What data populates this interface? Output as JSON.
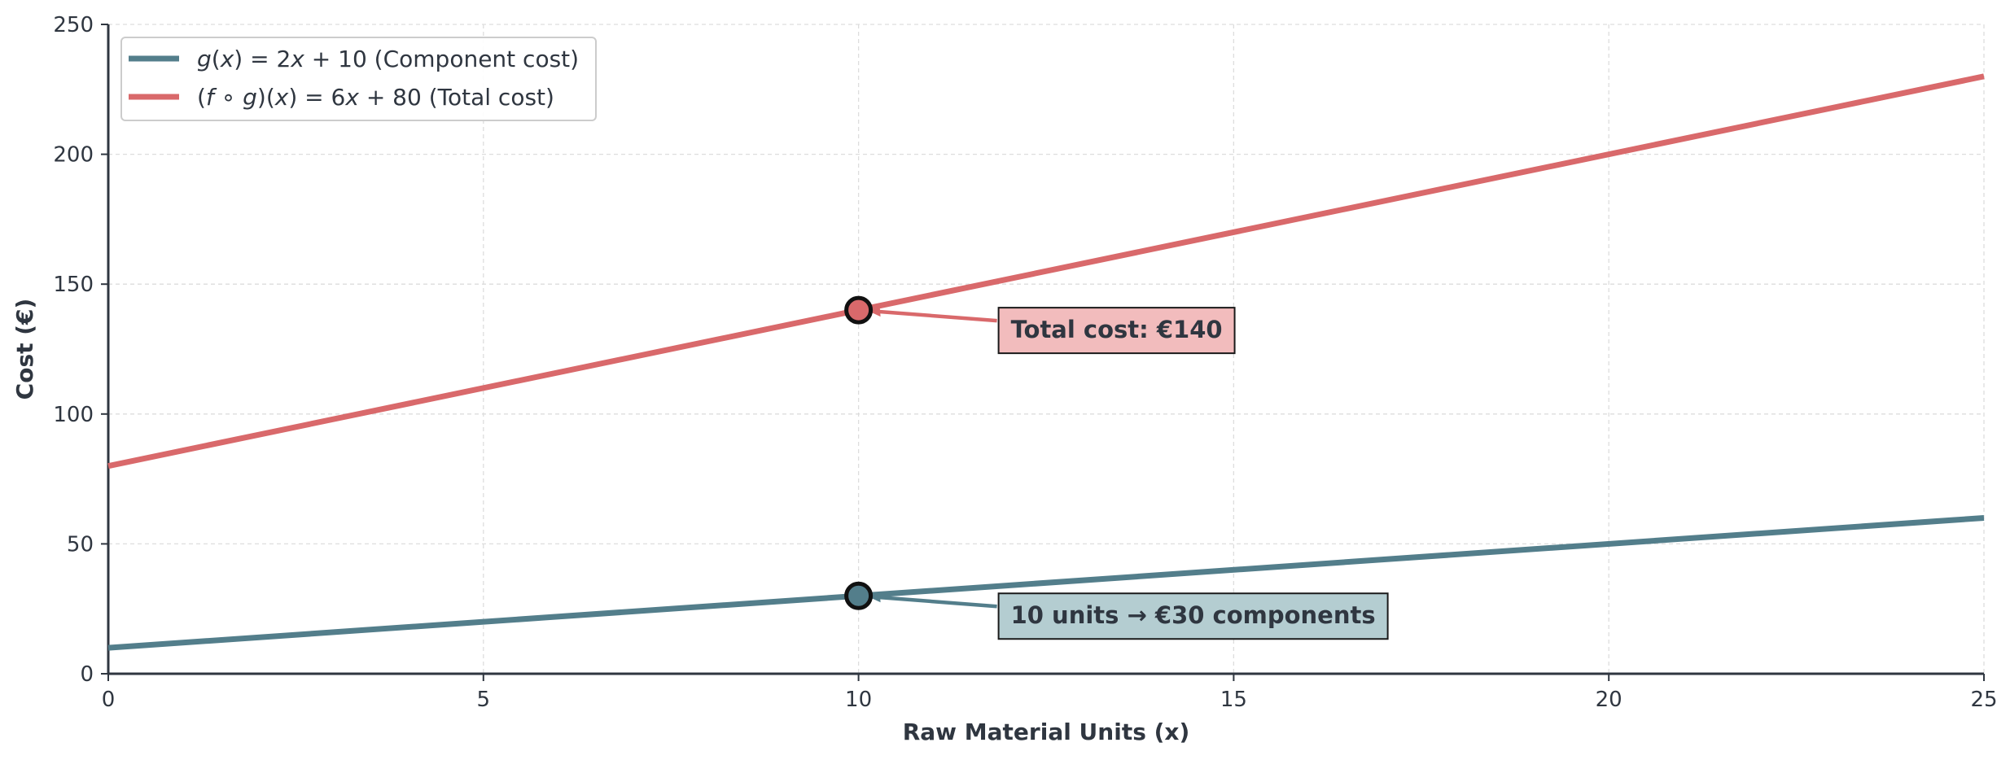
{
  "chart_data": {
    "type": "line",
    "xlabel": "Raw Material Units (x)",
    "ylabel": "Cost (€)",
    "xlim": [
      0,
      25
    ],
    "ylim": [
      0,
      250
    ],
    "x_ticks": [
      0,
      5,
      10,
      15,
      20,
      25
    ],
    "y_ticks": [
      0,
      50,
      100,
      150,
      200,
      250
    ],
    "grid": true,
    "legend_position": "top-left",
    "series": [
      {
        "key": "g",
        "name": "g(x) = 2x + 10 (Component cost)",
        "legend_parts": [
          "g",
          "(",
          "x",
          ") = 2",
          "x",
          " + 10 (Component cost)"
        ],
        "x": [
          0,
          25
        ],
        "y": [
          10,
          60
        ],
        "color": "#537e8b"
      },
      {
        "key": "fog",
        "name": "(f ∘ g)(x) = 6x + 80 (Total cost)",
        "legend_parts": [
          "(",
          "f",
          " ∘ ",
          "g",
          ")(",
          "x",
          ") = 6",
          "x",
          " + 80 (Total cost)"
        ],
        "x": [
          0,
          25
        ],
        "y": [
          80,
          230
        ],
        "color": "#d9696b"
      }
    ],
    "annotations": [
      {
        "series": "fog",
        "point": [
          10,
          140
        ],
        "text": "Total cost: €140",
        "box_color": "#f2bcbd",
        "anchor": "lower-right"
      },
      {
        "series": "g",
        "point": [
          10,
          30
        ],
        "text": "10 units → €30 components",
        "box_color": "#b4cdd1",
        "anchor": "lower-right"
      }
    ],
    "colors": {
      "axis": "#2f3640",
      "grid": "#dddddd",
      "marker_edge": "#111111"
    }
  }
}
